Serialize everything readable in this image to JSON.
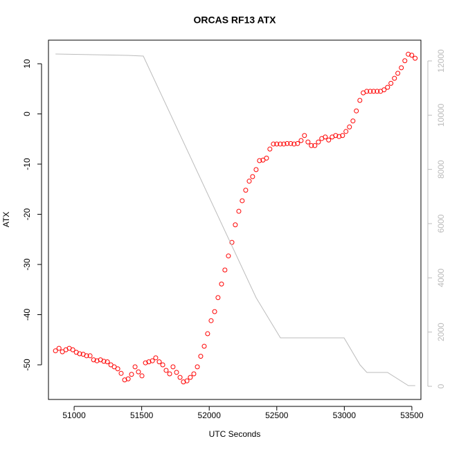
{
  "chart_data": {
    "type": "scatter",
    "title": "ORCAS RF13 ATX",
    "xlabel": "UTC Seconds",
    "ylabel": "ATX",
    "xlim": [
      50810,
      53567
    ],
    "xticks": [
      51000,
      51500,
      52000,
      52500,
      53000,
      53500
    ],
    "ylim": [
      -56.9,
      14.7
    ],
    "yticks": [
      -50,
      -40,
      -30,
      -20,
      -10,
      0,
      10
    ],
    "y2lim": [
      -485,
      12766
    ],
    "y2ticks": [
      0,
      2000,
      4000,
      6000,
      8000,
      10000,
      12000
    ],
    "y2color": "#bbbbbb",
    "series": [
      {
        "type": "scatter",
        "color": "#ff0000",
        "x": [
          50862,
          50888,
          50913,
          50939,
          50964,
          50990,
          51016,
          51041,
          51067,
          51092,
          51118,
          51144,
          51169,
          51195,
          51220,
          51246,
          51272,
          51297,
          51323,
          51348,
          51374,
          51400,
          51425,
          51451,
          51476,
          51502,
          51528,
          51553,
          51579,
          51604,
          51630,
          51656,
          51681,
          51707,
          51732,
          51758,
          51784,
          51809,
          51835,
          51860,
          51886,
          51912,
          51937,
          51963,
          51988,
          52014,
          52040,
          52065,
          52091,
          52116,
          52142,
          52168,
          52193,
          52219,
          52244,
          52270,
          52296,
          52321,
          52347,
          52372,
          52398,
          52424,
          52449,
          52475,
          52500,
          52526,
          52552,
          52577,
          52603,
          52628,
          52654,
          52680,
          52705,
          52731,
          52756,
          52782,
          52808,
          52833,
          52859,
          52884,
          52910,
          52936,
          52961,
          52987,
          53012,
          53038,
          53064,
          53089,
          53115,
          53140,
          53166,
          53192,
          53217,
          53243,
          53268,
          53294,
          53320,
          53345,
          53371,
          53396,
          53422,
          53448,
          53473,
          53499,
          53524
        ],
        "values": [
          -47.2,
          -46.7,
          -47.4,
          -47.0,
          -46.7,
          -47.0,
          -47.5,
          -47.8,
          -47.9,
          -48.2,
          -48.2,
          -49.0,
          -49.2,
          -49.0,
          -49.3,
          -49.4,
          -50.0,
          -50.4,
          -50.8,
          -51.7,
          -53.0,
          -52.8,
          -51.9,
          -50.4,
          -51.4,
          -52.2,
          -49.6,
          -49.4,
          -49.2,
          -48.6,
          -49.4,
          -50.0,
          -51.1,
          -51.8,
          -50.4,
          -51.5,
          -52.5,
          -53.4,
          -53.2,
          -52.5,
          -51.8,
          -50.4,
          -48.3,
          -46.3,
          -43.8,
          -41.2,
          -39.4,
          -36.6,
          -33.9,
          -31.1,
          -28.3,
          -25.6,
          -22.1,
          -19.4,
          -17.3,
          -15.2,
          -13.4,
          -12.5,
          -11.1,
          -9.3,
          -9.2,
          -8.8,
          -7.0,
          -6.0,
          -6.0,
          -6.0,
          -6.0,
          -5.9,
          -5.9,
          -6.0,
          -5.9,
          -5.3,
          -4.3,
          -5.6,
          -6.3,
          -6.3,
          -5.6,
          -4.9,
          -4.6,
          -5.2,
          -4.6,
          -4.3,
          -4.5,
          -4.3,
          -3.5,
          -2.6,
          -1.4,
          0.6,
          2.7,
          4.2,
          4.5,
          4.5,
          4.5,
          4.5,
          4.5,
          4.8,
          5.3,
          6.1,
          7.1,
          8.1,
          9.2,
          10.6,
          11.9,
          11.7,
          11.1
        ]
      },
      {
        "type": "line",
        "color": "#bbbbbb",
        "axis": "y2",
        "x": [
          50862,
          51400,
          51512,
          52347,
          52527,
          52998,
          53116,
          53167,
          53320,
          53474,
          53525
        ],
        "values": [
          12255,
          12204,
          12178,
          3268,
          1787,
          1787,
          791,
          511,
          511,
          26,
          26
        ]
      }
    ]
  }
}
